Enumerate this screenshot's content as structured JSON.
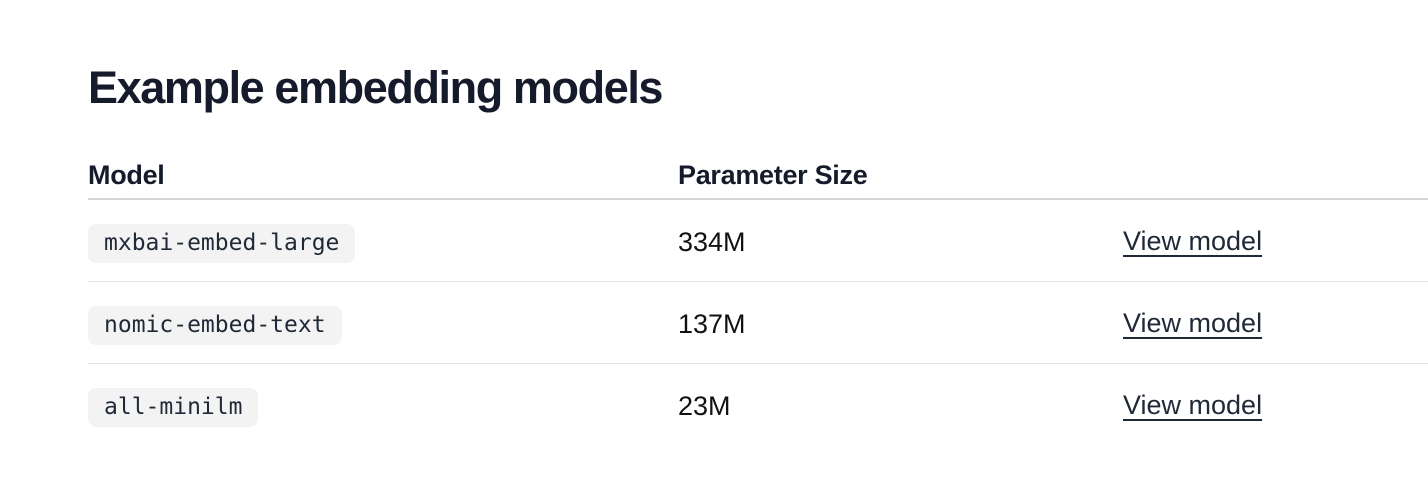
{
  "section": {
    "title": "Example embedding models"
  },
  "table": {
    "headers": {
      "model": "Model",
      "parameter_size": "Parameter Size",
      "action": ""
    },
    "rows": [
      {
        "model": "mxbai-embed-large",
        "parameter_size": "334M",
        "link_label": "View model"
      },
      {
        "model": "nomic-embed-text",
        "parameter_size": "137M",
        "link_label": "View model"
      },
      {
        "model": "all-minilm",
        "parameter_size": "23M",
        "link_label": "View model"
      }
    ]
  },
  "colors": {
    "text_primary": "#161b2b",
    "code_background": "#f3f3f3",
    "divider": "#e5e5e5",
    "header_divider": "#d4d4d4"
  }
}
